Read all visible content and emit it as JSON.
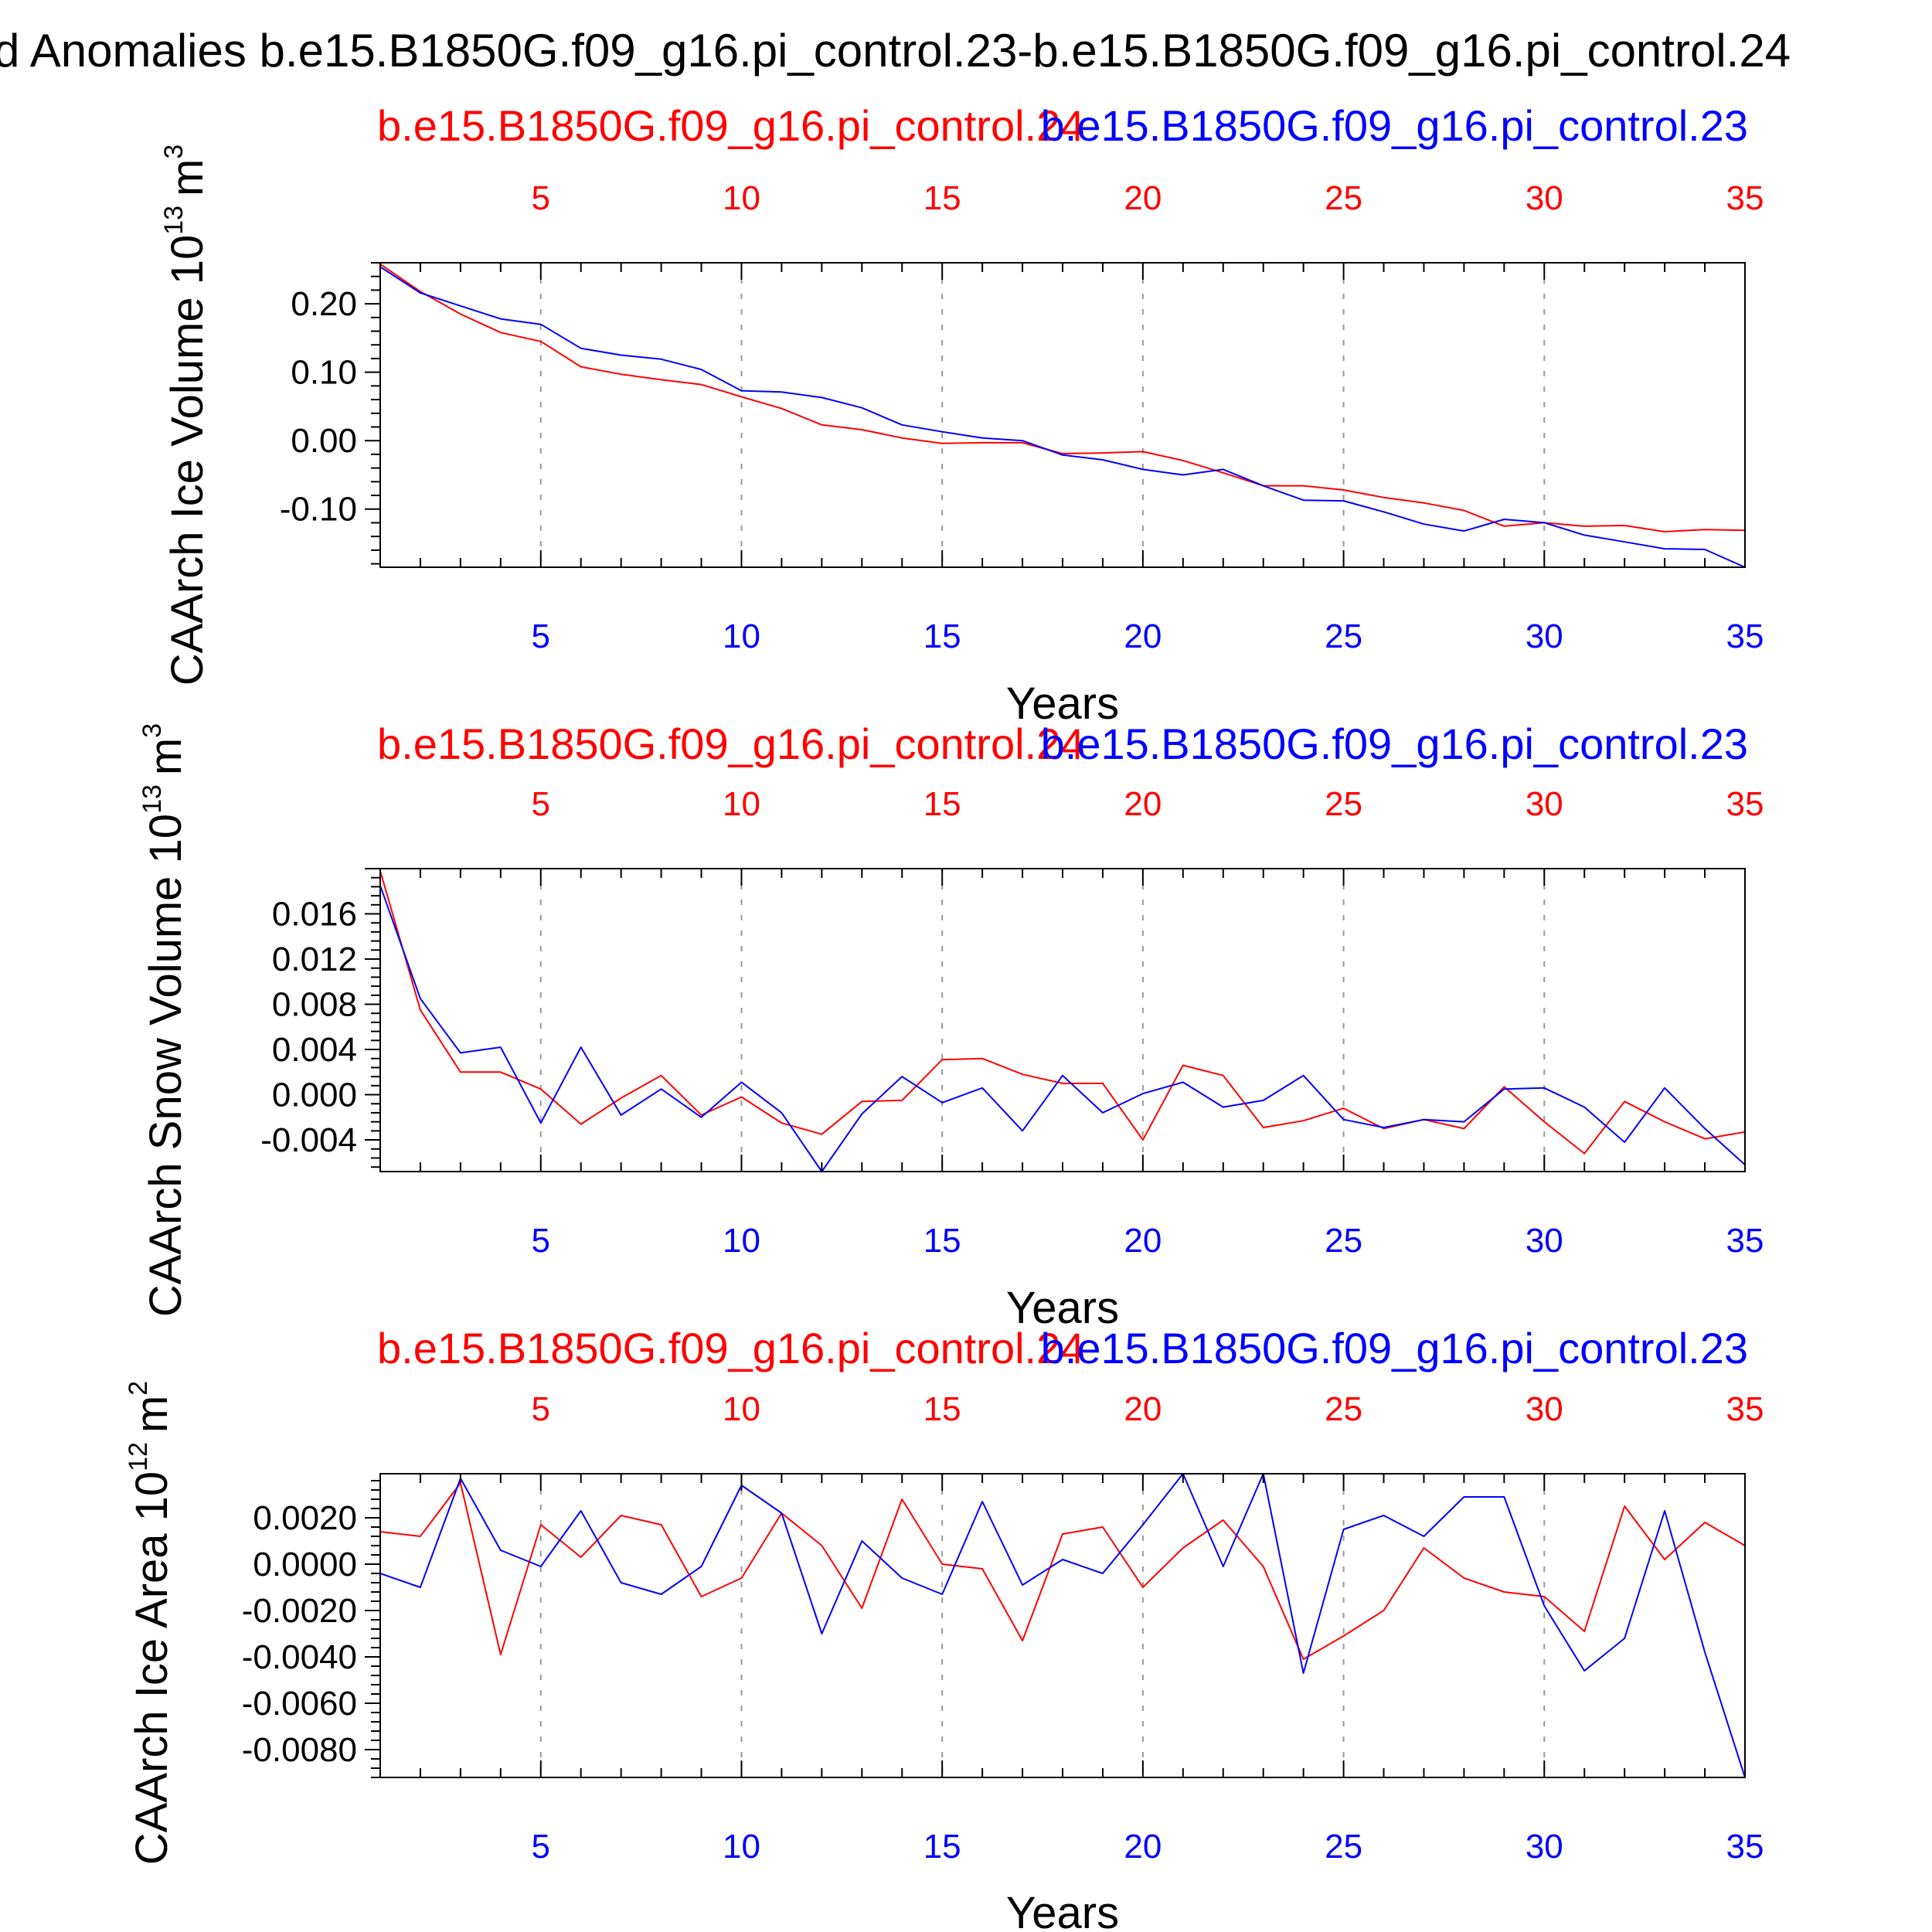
{
  "figure": {
    "title": "d Anomalies b.e15.B1850G.f09_g16.pi_control.23-b.e15.B1850G.f09_g16.pi_control.24",
    "colors": {
      "blue": "#0000ff",
      "red": "#ff0000",
      "axis": "#000000",
      "grid": "#999999"
    }
  },
  "chart_data": [
    {
      "type": "line",
      "ylabel": "CAArch Ice Volume 10",
      "ylabel_exp": "13",
      "ylabel_unit": "m",
      "ylabel_unit_exp": "3",
      "xlabel": "Years",
      "top_left_label": "b.e15.B1850G.f09_g16.pi_control.24",
      "top_right_label": "b.e15.B1850G.f09_g16.pi_control.23",
      "xlim": [
        1,
        35
      ],
      "xticks": [
        5,
        10,
        15,
        20,
        25,
        30,
        35
      ],
      "ylim": [
        -0.185,
        0.26
      ],
      "yticks": [
        0.2,
        0.1,
        0.0,
        -0.1
      ],
      "ytick_labels": [
        "0.20",
        "0.10",
        "0.00",
        "-0.10"
      ],
      "grid": "vertical-dashed",
      "x": [
        1,
        2,
        3,
        4,
        5,
        6,
        7,
        8,
        9,
        10,
        11,
        12,
        13,
        14,
        15,
        16,
        17,
        18,
        19,
        20,
        21,
        22,
        23,
        24,
        25,
        26,
        27,
        28,
        29,
        30,
        31,
        32,
        33,
        34,
        35
      ],
      "series": [
        {
          "name": "b.e15.B1850G.f09_g16.pi_control.24",
          "color": "#ff0000",
          "values": [
            0.258,
            0.218,
            0.185,
            0.158,
            0.145,
            0.108,
            0.097,
            0.089,
            0.082,
            0.064,
            0.047,
            0.023,
            0.016,
            0.004,
            -0.004,
            -0.003,
            -0.003,
            -0.019,
            -0.018,
            -0.016,
            -0.029,
            -0.047,
            -0.066,
            -0.066,
            -0.072,
            -0.083,
            -0.091,
            -0.102,
            -0.125,
            -0.12,
            -0.125,
            -0.124,
            -0.133,
            -0.13,
            -0.131
          ]
        },
        {
          "name": "b.e15.B1850G.f09_g16.pi_control.23",
          "color": "#0000ff",
          "values": [
            0.254,
            0.216,
            0.197,
            0.178,
            0.17,
            0.135,
            0.125,
            0.119,
            0.104,
            0.073,
            0.071,
            0.063,
            0.048,
            0.023,
            0.013,
            0.004,
            0.0,
            -0.021,
            -0.028,
            -0.042,
            -0.05,
            -0.042,
            -0.066,
            -0.087,
            -0.088,
            -0.104,
            -0.122,
            -0.132,
            -0.115,
            -0.12,
            -0.138,
            -0.148,
            -0.158,
            -0.159,
            -0.185
          ]
        }
      ]
    },
    {
      "type": "line",
      "ylabel": "CAArch Snow Volume 10",
      "ylabel_exp": "13",
      "ylabel_unit": "m",
      "ylabel_unit_exp": "3",
      "xlabel": "Years",
      "top_left_label": "b.e15.B1850G.f09_g16.pi_control.24",
      "top_right_label": "b.e15.B1850G.f09_g16.pi_control.23",
      "xlim": [
        1,
        35
      ],
      "xticks": [
        5,
        10,
        15,
        20,
        25,
        30,
        35
      ],
      "ylim": [
        -0.0068,
        0.02
      ],
      "yticks": [
        0.016,
        0.012,
        0.008,
        0.004,
        0.0,
        -0.004
      ],
      "ytick_labels": [
        "0.016",
        "0.012",
        "0.008",
        "0.004",
        "0.000",
        "-0.004"
      ],
      "grid": "vertical-dashed",
      "x": [
        1,
        2,
        3,
        4,
        5,
        6,
        7,
        8,
        9,
        10,
        11,
        12,
        13,
        14,
        15,
        16,
        17,
        18,
        19,
        20,
        21,
        22,
        23,
        24,
        25,
        26,
        27,
        28,
        29,
        30,
        31,
        32,
        33,
        34,
        35
      ],
      "series": [
        {
          "name": "b.e15.B1850G.f09_g16.pi_control.24",
          "color": "#ff0000",
          "values": [
            0.0198,
            0.0075,
            0.002,
            0.002,
            0.0005,
            -0.0026,
            -0.0003,
            0.0017,
            -0.0018,
            -0.0002,
            -0.0025,
            -0.0035,
            -0.0006,
            -0.0005,
            0.0031,
            0.0032,
            0.0018,
            0.001,
            0.001,
            -0.004,
            0.0026,
            0.0017,
            -0.0029,
            -0.0023,
            -0.0012,
            -0.003,
            -0.0022,
            -0.003,
            0.0007,
            -0.0024,
            -0.0052,
            -0.0006,
            -0.0024,
            -0.0039,
            -0.0033
          ]
        },
        {
          "name": "b.e15.B1850G.f09_g16.pi_control.23",
          "color": "#0000ff",
          "values": [
            0.0185,
            0.0085,
            0.0037,
            0.0042,
            -0.0025,
            0.0042,
            -0.0018,
            0.0005,
            -0.002,
            0.0011,
            -0.0016,
            -0.0068,
            -0.0017,
            0.0016,
            -0.0007,
            0.0006,
            -0.0032,
            0.0017,
            -0.0016,
            0.0001,
            0.0011,
            -0.0011,
            -0.0005,
            0.0017,
            -0.0022,
            -0.0029,
            -0.0022,
            -0.0024,
            0.0005,
            0.0006,
            -0.0011,
            -0.0042,
            0.0006,
            -0.003,
            -0.0062
          ]
        }
      ]
    },
    {
      "type": "line",
      "ylabel": "CAArch Ice Area 10",
      "ylabel_exp": "12",
      "ylabel_unit": "m",
      "ylabel_unit_exp": "2",
      "xlabel": "Years",
      "top_left_label": "b.e15.B1850G.f09_g16.pi_control.24",
      "top_right_label": "b.e15.B1850G.f09_g16.pi_control.23",
      "xlim": [
        1,
        35
      ],
      "xticks": [
        5,
        10,
        15,
        20,
        25,
        30,
        35
      ],
      "ylim": [
        -0.0092,
        0.0039
      ],
      "yticks": [
        0.002,
        0.0,
        -0.002,
        -0.004,
        -0.006,
        -0.008
      ],
      "ytick_labels": [
        "0.0020",
        "0.0000",
        "-0.0020",
        "-0.0040",
        "-0.0060",
        "-0.0080"
      ],
      "grid": "vertical-dashed",
      "x": [
        1,
        2,
        3,
        4,
        5,
        6,
        7,
        8,
        9,
        10,
        11,
        12,
        13,
        14,
        15,
        16,
        17,
        18,
        19,
        20,
        21,
        22,
        23,
        24,
        25,
        26,
        27,
        28,
        29,
        30,
        31,
        32,
        33,
        34,
        35
      ],
      "series": [
        {
          "name": "b.e15.B1850G.f09_g16.pi_control.24",
          "color": "#ff0000",
          "values": [
            0.0014,
            0.0012,
            0.0035,
            -0.0039,
            0.0017,
            0.0003,
            0.0021,
            0.0017,
            -0.0014,
            -0.0006,
            0.0022,
            0.0008,
            -0.0019,
            0.0028,
            0.0,
            -0.0002,
            -0.0033,
            0.0013,
            0.0016,
            -0.001,
            0.0007,
            0.0019,
            -0.0001,
            -0.0041,
            -0.0031,
            -0.002,
            0.0007,
            -0.0006,
            -0.0012,
            -0.0014,
            -0.0029,
            0.0025,
            0.0002,
            0.0018,
            0.0008
          ]
        },
        {
          "name": "b.e15.B1850G.f09_g16.pi_control.23",
          "color": "#0000ff",
          "values": [
            -0.0004,
            -0.001,
            0.0037,
            0.0006,
            -0.0001,
            0.0023,
            -0.0008,
            -0.0013,
            -0.0001,
            0.0034,
            0.0022,
            -0.003,
            0.001,
            -0.0006,
            -0.0013,
            0.0027,
            -0.0009,
            0.0002,
            -0.0004,
            0.0017,
            0.0039,
            -0.0001,
            0.0039,
            -0.0047,
            0.0015,
            0.0021,
            0.0012,
            0.0029,
            0.0029,
            -0.0018,
            -0.0046,
            -0.0032,
            0.0023,
            -0.0038,
            -0.0092
          ]
        }
      ]
    }
  ]
}
